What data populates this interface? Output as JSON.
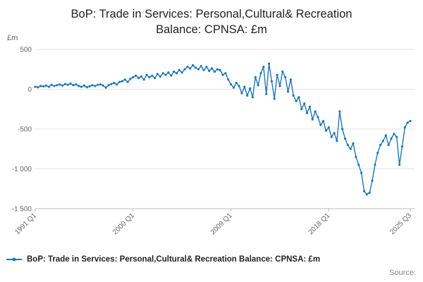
{
  "header": {
    "title_line1": "BoP: Trade in Services: Personal,Cultural& Recreation",
    "title_line2": "Balance: CPNSA: £m"
  },
  "chart_data": {
    "type": "line",
    "title": "BoP: Trade in Services: Personal,Cultural& Recreation Balance: CPNSA: £m",
    "unit_label": "£m",
    "line_color": "#1f77b4",
    "grid_color": "#e3e3e3",
    "axis_color": "#bbbbbb",
    "tick_text_color": "#666666",
    "frequency": "quarterly",
    "x_start": "1991 Q1",
    "x_end": "2025 Q3",
    "x_tick_labels": [
      "1991 Q1",
      "2000 Q1",
      "2009 Q1",
      "2018 Q1",
      "2025 Q3"
    ],
    "x_tick_indices": [
      0,
      36,
      72,
      108,
      138
    ],
    "y_ticks": [
      500,
      0,
      -500,
      -1000,
      -1500
    ],
    "y_tick_labels": [
      "500",
      "0",
      "-500",
      "-1 000",
      "-1 500"
    ],
    "ylim": [
      -1500,
      500
    ],
    "grid": true,
    "legend_position": "bottom-left",
    "values": [
      30,
      25,
      40,
      35,
      45,
      30,
      55,
      40,
      50,
      60,
      45,
      65,
      55,
      70,
      50,
      60,
      40,
      30,
      45,
      25,
      35,
      50,
      40,
      55,
      60,
      45,
      20,
      50,
      65,
      80,
      60,
      90,
      100,
      120,
      90,
      130,
      150,
      170,
      140,
      160,
      120,
      180,
      150,
      170,
      140,
      190,
      160,
      200,
      180,
      210,
      170,
      220,
      200,
      240,
      210,
      250,
      280,
      260,
      300,
      270,
      250,
      290,
      240,
      280,
      230,
      260,
      220,
      250,
      240,
      180,
      200,
      120,
      60,
      20,
      80,
      40,
      -50,
      30,
      -80,
      10,
      -100,
      150,
      50,
      200,
      280,
      -60,
      320,
      100,
      -120,
      180,
      40,
      220,
      150,
      -30,
      120,
      -80,
      -150,
      -100,
      -250,
      -180,
      -300,
      -220,
      -380,
      -280,
      -350,
      -450,
      -400,
      -520,
      -480,
      -600,
      -550,
      -650,
      -280,
      -500,
      -620,
      -700,
      -750,
      -680,
      -850,
      -950,
      -1050,
      -1280,
      -1320,
      -1300,
      -1150,
      -950,
      -800,
      -700,
      -650,
      -580,
      -700,
      -620,
      -560,
      -600,
      -950,
      -720,
      -480,
      -420,
      -400
    ]
  },
  "legend": {
    "label": "BoP: Trade in Services: Personal,Cultural& Recreation Balance: CPNSA: £m"
  },
  "footer": {
    "source_label": "Source:"
  }
}
